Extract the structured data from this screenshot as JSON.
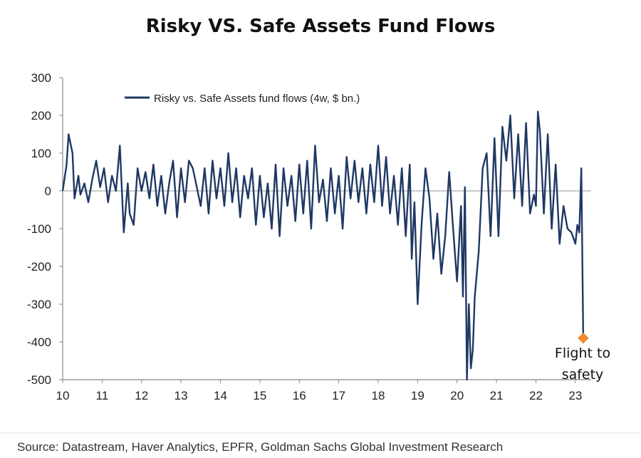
{
  "title": "Risky VS. Safe Assets Fund Flows",
  "source": "Source: Datastream, Haver Analytics, EPFR, Goldman Sachs Global Investment Research",
  "annotation": {
    "line1": "Flight to",
    "line2": "safety"
  },
  "colors": {
    "series": "#1f3864",
    "marker": "#f08a33",
    "axis": "#888888",
    "zero_line": "#aaaaaa"
  },
  "chart_data": {
    "type": "line",
    "title": "Risky VS. Safe Assets Fund Flows",
    "xlabel": "",
    "ylabel": "",
    "xlim": [
      2010,
      2023.4
    ],
    "ylim": [
      -500,
      300
    ],
    "xticks": [
      "10",
      "11",
      "12",
      "13",
      "14",
      "15",
      "16",
      "17",
      "18",
      "19",
      "20",
      "21",
      "22",
      "23"
    ],
    "yticks": [
      "300",
      "200",
      "100",
      "0",
      "-100",
      "-200",
      "-300",
      "-400",
      "-500"
    ],
    "grid": false,
    "zero_line": true,
    "legend": {
      "placement": "top-left"
    },
    "series": [
      {
        "name": "Risky vs. Safe Assets fund flows (4w, $ bn.)",
        "x": [
          2010.0,
          2010.1,
          2010.15,
          2010.25,
          2010.3,
          2010.4,
          2010.45,
          2010.55,
          2010.65,
          2010.75,
          2010.85,
          2010.95,
          2011.05,
          2011.15,
          2011.25,
          2011.35,
          2011.45,
          2011.55,
          2011.65,
          2011.7,
          2011.8,
          2011.9,
          2012.0,
          2012.1,
          2012.2,
          2012.3,
          2012.4,
          2012.5,
          2012.6,
          2012.7,
          2012.8,
          2012.9,
          2013.0,
          2013.1,
          2013.2,
          2013.3,
          2013.4,
          2013.5,
          2013.6,
          2013.7,
          2013.8,
          2013.9,
          2014.0,
          2014.1,
          2014.2,
          2014.3,
          2014.4,
          2014.5,
          2014.6,
          2014.7,
          2014.8,
          2014.9,
          2015.0,
          2015.1,
          2015.2,
          2015.3,
          2015.4,
          2015.5,
          2015.6,
          2015.7,
          2015.8,
          2015.9,
          2016.0,
          2016.1,
          2016.2,
          2016.3,
          2016.4,
          2016.5,
          2016.6,
          2016.7,
          2016.8,
          2016.9,
          2017.0,
          2017.1,
          2017.2,
          2017.3,
          2017.4,
          2017.5,
          2017.6,
          2017.7,
          2017.8,
          2017.9,
          2018.0,
          2018.1,
          2018.2,
          2018.3,
          2018.4,
          2018.5,
          2018.6,
          2018.7,
          2018.8,
          2018.85,
          2018.92,
          2019.0,
          2019.1,
          2019.2,
          2019.3,
          2019.4,
          2019.5,
          2019.6,
          2019.7,
          2019.8,
          2019.9,
          2020.0,
          2020.1,
          2020.15,
          2020.2,
          2020.25,
          2020.3,
          2020.35,
          2020.4,
          2020.45,
          2020.55,
          2020.65,
          2020.75,
          2020.85,
          2020.95,
          2021.05,
          2021.15,
          2021.25,
          2021.35,
          2021.45,
          2021.55,
          2021.65,
          2021.75,
          2021.85,
          2021.95,
          2022.0,
          2022.05,
          2022.1,
          2022.2,
          2022.3,
          2022.4,
          2022.5,
          2022.6,
          2022.7,
          2022.8,
          2022.9,
          2023.0,
          2023.05,
          2023.1,
          2023.15,
          2023.2
        ],
        "values": [
          0,
          70,
          150,
          100,
          -20,
          40,
          -10,
          20,
          -30,
          30,
          80,
          10,
          60,
          -30,
          40,
          0,
          120,
          -110,
          20,
          -60,
          -90,
          60,
          0,
          50,
          -20,
          70,
          -40,
          40,
          -60,
          20,
          80,
          -70,
          60,
          -30,
          80,
          60,
          10,
          -40,
          60,
          -60,
          80,
          -20,
          60,
          -40,
          100,
          -30,
          60,
          -70,
          40,
          -20,
          60,
          -90,
          40,
          -70,
          20,
          -100,
          70,
          -120,
          60,
          -40,
          40,
          -80,
          70,
          -60,
          80,
          -100,
          120,
          -30,
          30,
          -80,
          60,
          -60,
          40,
          -100,
          90,
          -20,
          80,
          -30,
          60,
          -60,
          70,
          -30,
          120,
          -40,
          90,
          -60,
          40,
          -90,
          60,
          -120,
          70,
          -180,
          -30,
          -300,
          -90,
          60,
          -20,
          -180,
          -60,
          -220,
          -120,
          50,
          -100,
          -240,
          -40,
          -280,
          10,
          -500,
          -300,
          -470,
          -420,
          -280,
          -160,
          60,
          100,
          -120,
          140,
          -120,
          170,
          80,
          200,
          -20,
          150,
          -40,
          180,
          -60,
          -10,
          -40,
          210,
          160,
          -60,
          150,
          -100,
          70,
          -140,
          -40,
          -100,
          -110,
          -140,
          -90,
          -110,
          60,
          -390
        ]
      }
    ],
    "annotations": [
      {
        "text": "Flight to safety",
        "x": 2023.2,
        "y": -390
      }
    ]
  }
}
